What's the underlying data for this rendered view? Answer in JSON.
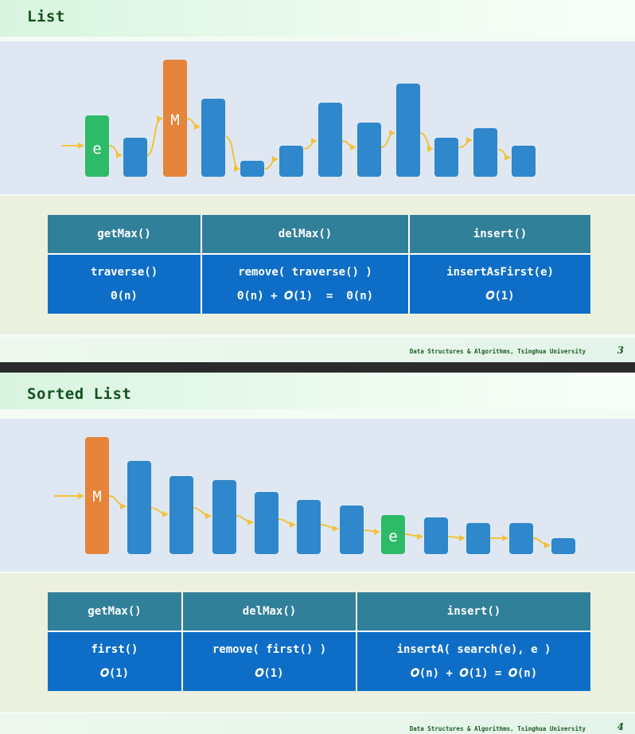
{
  "slides": [
    {
      "title": "List",
      "footer": "Data Structures & Algorithms, Tsinghua University",
      "page": "3",
      "table": {
        "headers": [
          "getMax()",
          "delMax()",
          "insert()"
        ],
        "rows": [
          [
            "traverse()",
            "remove( traverse() )",
            "insertAsFirst(e)"
          ],
          [
            "Θ(n)",
            "Θ(n) + 𝑶(1)  =  Θ(n)",
            "𝑶(1)"
          ]
        ]
      },
      "diagram": {
        "labels": {
          "new": "e",
          "max": "M"
        }
      }
    },
    {
      "title": "Sorted List",
      "footer": "Data Structures & Algorithms, Tsinghua University",
      "page": "4",
      "table": {
        "headers": [
          "getMax()",
          "delMax()",
          "insert()"
        ],
        "rows": [
          [
            "first()",
            "remove( first() )",
            "insertA( search(e), e )"
          ],
          [
            "𝑶(1)",
            "𝑶(1)",
            "𝑶(n) + 𝑶(1) = 𝑶(n)"
          ]
        ]
      },
      "diagram": {
        "labels": {
          "max": "M",
          "new": "e"
        }
      }
    }
  ],
  "colors": {
    "bar": "#2f87cc",
    "max": "#e5843a",
    "new": "#2dbb6a",
    "arrow": "#f2c23c"
  }
}
